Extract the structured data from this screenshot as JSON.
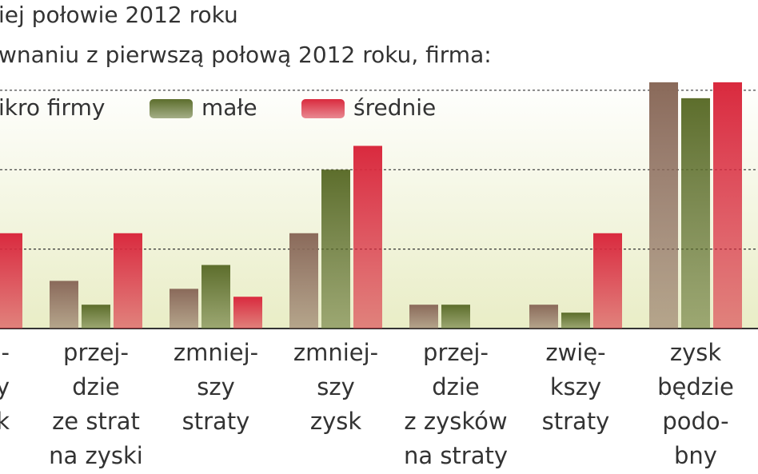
{
  "chart_data": {
    "type": "bar",
    "title": "iej połowie 2012 roku",
    "subtitle": "wnaniu z pierwszą połową 2012 roku, firma:",
    "categories": [
      "-\ny\nk",
      "przej-\ndzie\nze strat\nna zyski",
      "zmniej-\nszy\nstraty",
      "zmniej-\nszy\nzysk",
      "przej-\ndzie\nz zysków\nna straty",
      "zwię-\nkszy\nstraty",
      "zysk\nbędzie\npodo-\nbny"
    ],
    "series": [
      {
        "name": "ikro firmy",
        "color": "#8a6a5a",
        "values": [
          null,
          6,
          5,
          12,
          3,
          3,
          31
        ]
      },
      {
        "name": "małe",
        "color": "#5d6e2c",
        "values": [
          null,
          3,
          8,
          20,
          3,
          2,
          29
        ]
      },
      {
        "name": "średnie",
        "color": "#d92a3e",
        "values": [
          12,
          12,
          4,
          23,
          0,
          12,
          31
        ]
      }
    ],
    "ylim": [
      0,
      31
    ],
    "yticks": [
      0,
      10,
      20,
      30
    ],
    "grid": true
  }
}
